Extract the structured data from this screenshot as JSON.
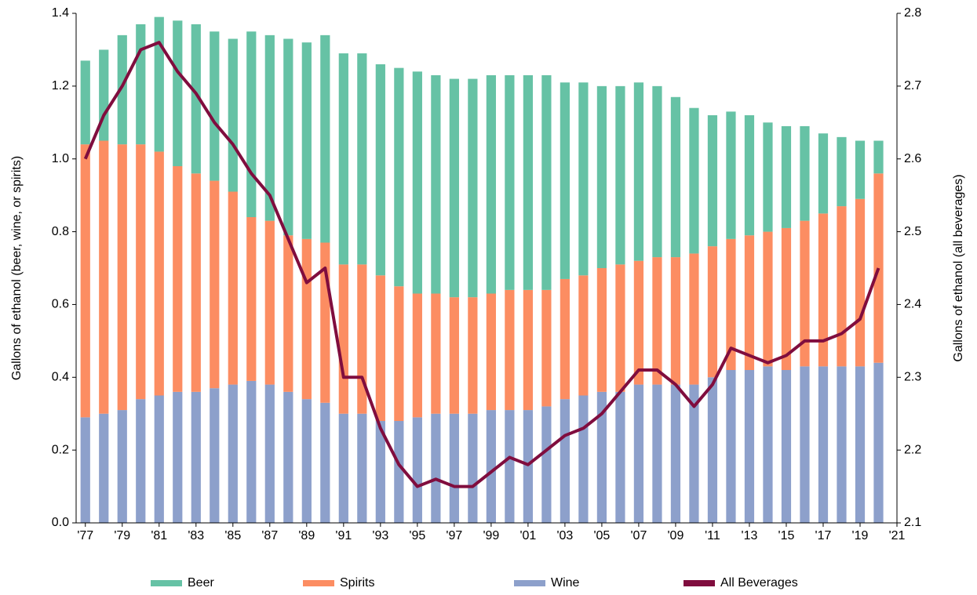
{
  "chart_data": {
    "type": "bar",
    "y_label": "Gallons of ethanol (beer, wine, or spirits)",
    "y2_label": "Gallons of ethanol (all beverages)",
    "x": [
      1977,
      1978,
      1979,
      1980,
      1981,
      1982,
      1983,
      1984,
      1985,
      1986,
      1987,
      1988,
      1989,
      1990,
      1991,
      1992,
      1993,
      1994,
      1995,
      1996,
      1997,
      1998,
      1999,
      2000,
      2001,
      2002,
      2003,
      2004,
      2005,
      2006,
      2007,
      2008,
      2009,
      2010,
      2011,
      2012,
      2013,
      2014,
      2015,
      2016,
      2017,
      2018,
      2019,
      2020
    ],
    "series": [
      {
        "name": "Wine",
        "type": "bar",
        "color": "#8da0cb",
        "values": [
          0.29,
          0.3,
          0.31,
          0.34,
          0.35,
          0.36,
          0.36,
          0.37,
          0.38,
          0.39,
          0.38,
          0.36,
          0.34,
          0.33,
          0.3,
          0.3,
          0.28,
          0.28,
          0.29,
          0.3,
          0.3,
          0.3,
          0.31,
          0.31,
          0.31,
          0.32,
          0.34,
          0.35,
          0.36,
          0.36,
          0.38,
          0.38,
          0.38,
          0.38,
          0.4,
          0.42,
          0.42,
          0.43,
          0.42,
          0.43,
          0.43,
          0.43,
          0.43,
          0.44
        ]
      },
      {
        "name": "Spirits",
        "type": "bar",
        "color": "#fc8d62",
        "values": [
          0.75,
          0.75,
          0.73,
          0.7,
          0.67,
          0.62,
          0.6,
          0.57,
          0.53,
          0.45,
          0.45,
          0.43,
          0.44,
          0.44,
          0.41,
          0.41,
          0.4,
          0.37,
          0.34,
          0.33,
          0.32,
          0.32,
          0.32,
          0.33,
          0.33,
          0.32,
          0.33,
          0.33,
          0.34,
          0.35,
          0.34,
          0.35,
          0.35,
          0.36,
          0.36,
          0.36,
          0.37,
          0.37,
          0.39,
          0.4,
          0.42,
          0.44,
          0.46,
          0.52
        ]
      },
      {
        "name": "Beer",
        "type": "bar",
        "color": "#66c2a5",
        "values": [
          0.23,
          0.25,
          0.3,
          0.33,
          0.37,
          0.4,
          0.41,
          0.41,
          0.42,
          0.51,
          0.51,
          0.54,
          0.54,
          0.57,
          0.58,
          0.58,
          0.58,
          0.6,
          0.61,
          0.6,
          0.6,
          0.6,
          0.6,
          0.59,
          0.59,
          0.59,
          0.54,
          0.53,
          0.5,
          0.49,
          0.49,
          0.47,
          0.44,
          0.4,
          0.36,
          0.35,
          0.33,
          0.3,
          0.28,
          0.26,
          0.22,
          0.19,
          0.16,
          0.09
        ]
      },
      {
        "name": "All Beverages",
        "type": "line",
        "axis": "y2",
        "color": "#800d3e",
        "values": [
          2.6,
          2.66,
          2.7,
          2.75,
          2.76,
          2.72,
          2.69,
          2.65,
          2.62,
          2.58,
          2.55,
          2.49,
          2.43,
          2.45,
          2.3,
          2.3,
          2.23,
          2.18,
          2.15,
          2.16,
          2.15,
          2.15,
          2.17,
          2.19,
          2.18,
          2.2,
          2.22,
          2.23,
          2.25,
          2.28,
          2.31,
          2.31,
          2.29,
          2.26,
          2.29,
          2.34,
          2.33,
          2.32,
          2.33,
          2.35,
          2.35,
          2.36,
          2.38,
          2.45
        ]
      }
    ],
    "xlim": [
      1976.5,
      2021
    ],
    "xticks": [
      {
        "value": 1977,
        "label": "'77"
      },
      {
        "value": 1979,
        "label": "'79"
      },
      {
        "value": 1981,
        "label": "'81"
      },
      {
        "value": 1983,
        "label": "'83"
      },
      {
        "value": 1985,
        "label": "'85"
      },
      {
        "value": 1987,
        "label": "'87"
      },
      {
        "value": 1989,
        "label": "'89"
      },
      {
        "value": 1991,
        "label": "'91"
      },
      {
        "value": 1993,
        "label": "'93"
      },
      {
        "value": 1995,
        "label": "'95"
      },
      {
        "value": 1997,
        "label": "'97"
      },
      {
        "value": 1999,
        "label": "'99"
      },
      {
        "value": 2001,
        "label": "'01"
      },
      {
        "value": 2003,
        "label": "'03"
      },
      {
        "value": 2005,
        "label": "'05"
      },
      {
        "value": 2007,
        "label": "'07"
      },
      {
        "value": 2009,
        "label": "'09"
      },
      {
        "value": 2011,
        "label": "'11"
      },
      {
        "value": 2013,
        "label": "'13"
      },
      {
        "value": 2015,
        "label": "'15"
      },
      {
        "value": 2017,
        "label": "'17"
      },
      {
        "value": 2019,
        "label": "'19"
      },
      {
        "value": 2021,
        "label": "'21"
      }
    ],
    "ylim": [
      0,
      1.4
    ],
    "yticks": [
      {
        "value": 0,
        "label": "0.0"
      },
      {
        "value": 0.2,
        "label": "0.2"
      },
      {
        "value": 0.4,
        "label": "0.4"
      },
      {
        "value": 0.6,
        "label": "0.6"
      },
      {
        "value": 0.8,
        "label": "0.8"
      },
      {
        "value": 1,
        "label": "1.0"
      },
      {
        "value": 1.2,
        "label": "1.2"
      },
      {
        "value": 1.4,
        "label": "1.4"
      }
    ],
    "y2lim": [
      2.1,
      2.8
    ],
    "y2ticks": [
      2.1,
      2.2,
      2.3,
      2.4,
      2.5,
      2.6,
      2.7,
      2.8
    ],
    "grid": false,
    "legend": "bottom"
  }
}
